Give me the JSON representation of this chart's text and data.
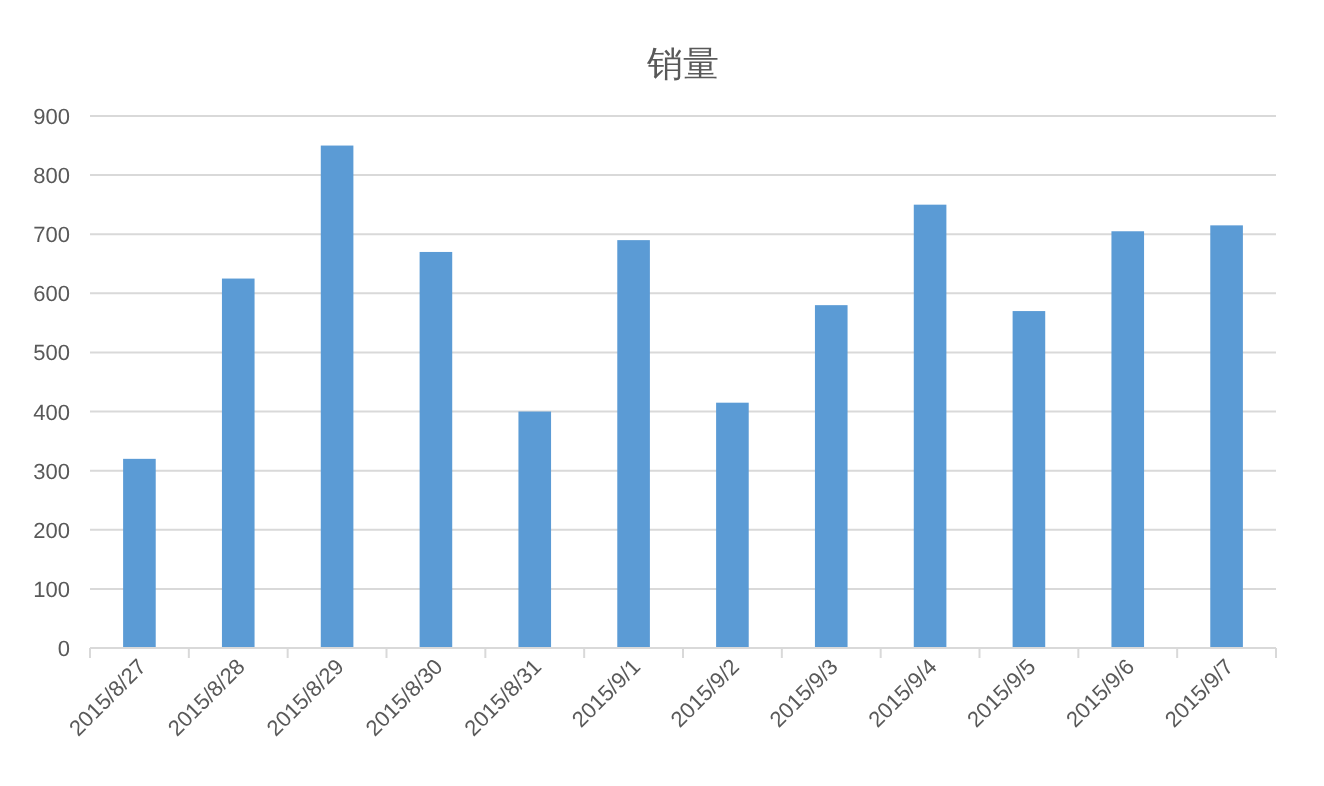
{
  "chart_data": {
    "type": "bar",
    "title": "销量",
    "categories": [
      "2015/8/27",
      "2015/8/28",
      "2015/8/29",
      "2015/8/30",
      "2015/8/31",
      "2015/9/1",
      "2015/9/2",
      "2015/9/3",
      "2015/9/4",
      "2015/9/5",
      "2015/9/6",
      "2015/9/7"
    ],
    "values": [
      320,
      625,
      850,
      670,
      400,
      690,
      415,
      580,
      750,
      570,
      705,
      715
    ],
    "color": "#5b9bd5",
    "ylim": [
      0,
      900
    ],
    "yticks": [
      0,
      100,
      200,
      300,
      400,
      500,
      600,
      700,
      800,
      900
    ],
    "grid": "y"
  }
}
